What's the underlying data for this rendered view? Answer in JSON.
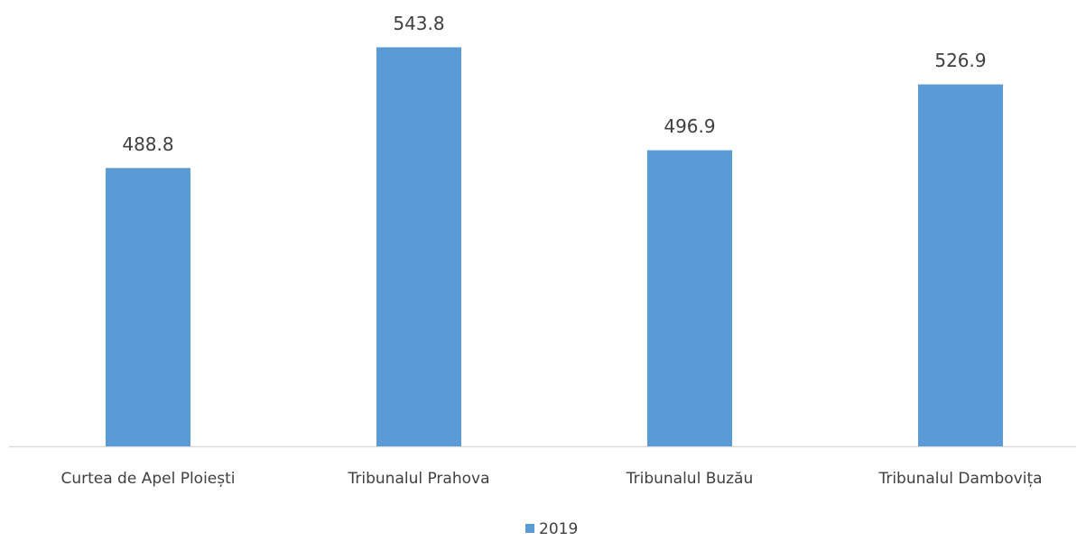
{
  "chart_data": {
    "type": "bar",
    "categories": [
      "Curtea de Apel Ploiești",
      "Tribunalul Prahova",
      "Tribunalul Buzău",
      "Tribunalul Dambovița"
    ],
    "series": [
      {
        "name": "2019",
        "color": "#5b9bd5",
        "values": [
          488.8,
          543.8,
          496.9,
          526.9
        ]
      }
    ],
    "ylim": [
      362,
      560
    ],
    "legend": "bottom"
  }
}
